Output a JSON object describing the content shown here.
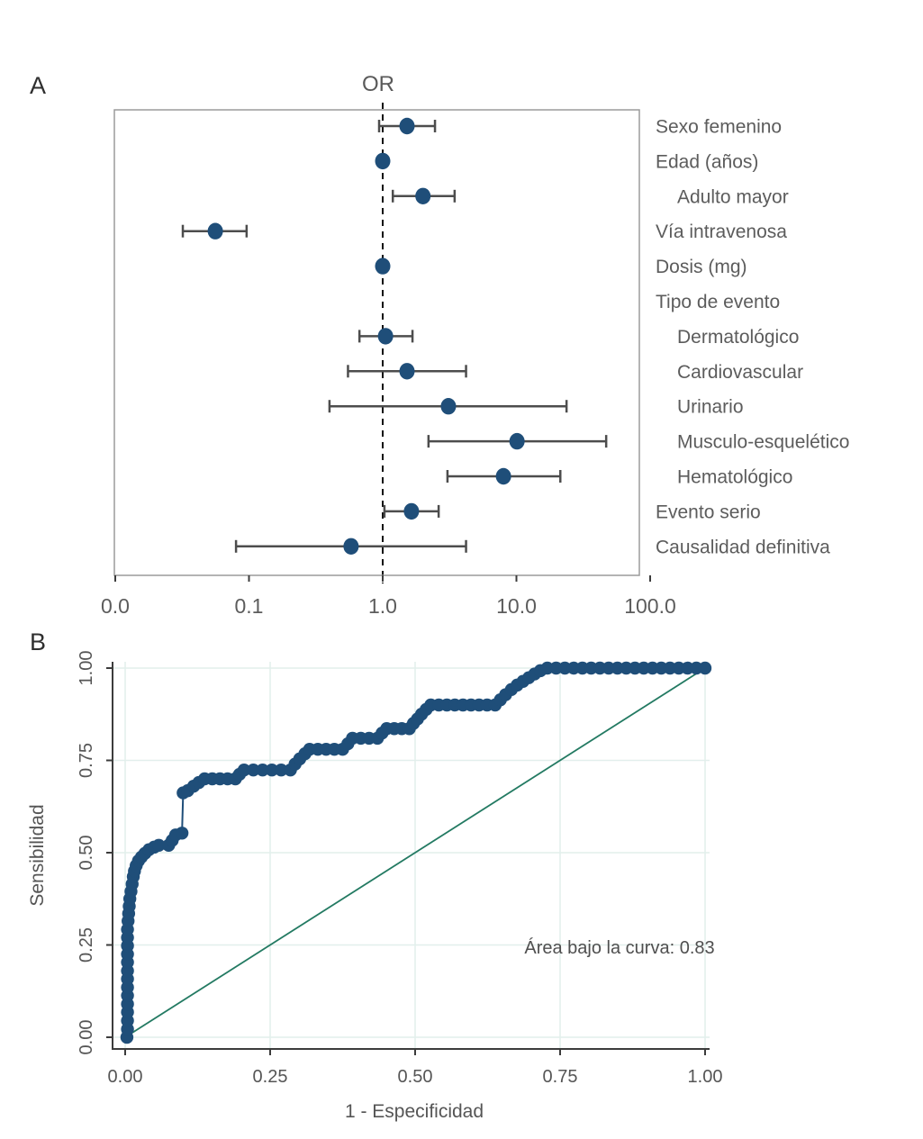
{
  "figure": {
    "panel_a": {
      "panel_label": "A",
      "title": "OR",
      "x_ticks": [
        "0.0",
        "0.1",
        "1.0",
        "10.0",
        "100.0"
      ],
      "x_tick_values": [
        0.01,
        0.1,
        1,
        10,
        100
      ],
      "reference_line": 1.0
    },
    "panel_b": {
      "panel_label": "B",
      "x_label": "1 - Especificidad",
      "y_label": "Sensibilidad",
      "x_ticks": [
        "0.00",
        "0.25",
        "0.50",
        "0.75",
        "1.00"
      ],
      "y_ticks": [
        "0.00",
        "0.25",
        "0.50",
        "0.75",
        "1.00"
      ],
      "annotation": "Área bajo la curva: 0.83",
      "auc": 0.83
    }
  },
  "colors": {
    "marker_navy": "#1f4e79",
    "diagonal_teal": "#237a62",
    "errorbar_gray": "#4d4d4d",
    "grid_light": "#e2efec",
    "text_gray": "#5c5c5c"
  },
  "chart_data": [
    {
      "type": "scatter",
      "subtype": "forest-plot",
      "title": "OR",
      "x_scale": "log",
      "x_ticks": [
        "0.0",
        "0.1",
        "1.0",
        "10.0",
        "100.0"
      ],
      "x_tick_values": [
        0.01,
        0.1,
        1,
        10,
        100
      ],
      "reference_line": 1.0,
      "rows": [
        {
          "label": "Sexo femenino",
          "indent": false,
          "or": 1.52,
          "ci_low": 0.94,
          "ci_high": 2.46
        },
        {
          "label": "Edad (años)",
          "indent": false,
          "or": 1.0,
          "ci_low": null,
          "ci_high": null
        },
        {
          "label": "Adulto mayor",
          "indent": true,
          "or": 2.0,
          "ci_low": 1.19,
          "ci_high": 3.45
        },
        {
          "label": "Vía intravenosa",
          "indent": false,
          "or": 0.056,
          "ci_low": 0.032,
          "ci_high": 0.096
        },
        {
          "label": "Dosis (mg)",
          "indent": false,
          "or": 1.0,
          "ci_low": null,
          "ci_high": null
        },
        {
          "label": "Tipo de evento",
          "indent": false,
          "or": null,
          "ci_low": null,
          "ci_high": null
        },
        {
          "label": "Dermatológico",
          "indent": true,
          "or": 1.05,
          "ci_low": 0.67,
          "ci_high": 1.67
        },
        {
          "label": "Cardiovascular",
          "indent": true,
          "or": 1.52,
          "ci_low": 0.55,
          "ci_high": 4.2
        },
        {
          "label": "Urinario",
          "indent": true,
          "or": 3.1,
          "ci_low": 0.4,
          "ci_high": 23.7
        },
        {
          "label": "Musculo-esquelético",
          "indent": true,
          "or": 10.1,
          "ci_low": 2.2,
          "ci_high": 46.9
        },
        {
          "label": "Hematológico",
          "indent": true,
          "or": 8.0,
          "ci_low": 3.05,
          "ci_high": 21.3
        },
        {
          "label": "Evento serio",
          "indent": false,
          "or": 1.64,
          "ci_low": 1.03,
          "ci_high": 2.62
        },
        {
          "label": "Causalidad definitiva",
          "indent": false,
          "or": 0.58,
          "ci_low": 0.08,
          "ci_high": 4.2
        }
      ]
    },
    {
      "type": "line",
      "subtype": "roc-curve",
      "xlabel": "1 - Especificidad",
      "ylabel": "Sensibilidad",
      "x_ticks": [
        "0.00",
        "0.25",
        "0.50",
        "0.75",
        "1.00"
      ],
      "y_ticks": [
        "0.00",
        "0.25",
        "0.50",
        "0.75",
        "1.00"
      ],
      "xlim": [
        0,
        1
      ],
      "ylim": [
        0,
        1
      ],
      "grid": true,
      "annotation": "Área bajo la curva: 0.83",
      "auc": 0.83,
      "diagonal_reference": true,
      "points": [
        [
          0.003,
          0.0
        ],
        [
          0.004,
          0.022
        ],
        [
          0.004,
          0.045
        ],
        [
          0.004,
          0.068
        ],
        [
          0.004,
          0.09
        ],
        [
          0.004,
          0.113
        ],
        [
          0.004,
          0.135
        ],
        [
          0.004,
          0.158
        ],
        [
          0.004,
          0.18
        ],
        [
          0.004,
          0.203
        ],
        [
          0.004,
          0.225
        ],
        [
          0.004,
          0.248
        ],
        [
          0.004,
          0.27
        ],
        [
          0.004,
          0.292
        ],
        [
          0.005,
          0.315
        ],
        [
          0.006,
          0.335
        ],
        [
          0.007,
          0.355
        ],
        [
          0.008,
          0.375
        ],
        [
          0.01,
          0.395
        ],
        [
          0.012,
          0.415
        ],
        [
          0.014,
          0.435
        ],
        [
          0.016,
          0.45
        ],
        [
          0.019,
          0.465
        ],
        [
          0.023,
          0.478
        ],
        [
          0.028,
          0.488
        ],
        [
          0.034,
          0.498
        ],
        [
          0.041,
          0.508
        ],
        [
          0.05,
          0.515
        ],
        [
          0.058,
          0.52
        ],
        [
          0.075,
          0.52
        ],
        [
          0.081,
          0.533
        ],
        [
          0.087,
          0.548
        ],
        [
          0.098,
          0.553
        ],
        [
          0.1,
          0.662,
          1
        ],
        [
          0.108,
          0.668
        ],
        [
          0.118,
          0.68
        ],
        [
          0.127,
          0.69
        ],
        [
          0.137,
          0.7
        ],
        [
          0.19,
          0.7
        ],
        [
          0.197,
          0.712
        ],
        [
          0.205,
          0.724
        ],
        [
          0.285,
          0.724
        ],
        [
          0.293,
          0.74
        ],
        [
          0.301,
          0.754
        ],
        [
          0.31,
          0.768
        ],
        [
          0.318,
          0.78
        ],
        [
          0.375,
          0.78
        ],
        [
          0.384,
          0.795
        ],
        [
          0.392,
          0.81
        ],
        [
          0.435,
          0.81
        ],
        [
          0.443,
          0.824
        ],
        [
          0.451,
          0.836
        ],
        [
          0.49,
          0.836
        ],
        [
          0.497,
          0.85
        ],
        [
          0.504,
          0.862
        ],
        [
          0.511,
          0.875
        ],
        [
          0.519,
          0.888
        ],
        [
          0.527,
          0.9
        ],
        [
          0.638,
          0.9
        ],
        [
          0.647,
          0.914
        ],
        [
          0.656,
          0.928
        ],
        [
          0.666,
          0.942
        ],
        [
          0.676,
          0.954
        ],
        [
          0.686,
          0.964
        ],
        [
          0.696,
          0.974
        ],
        [
          0.706,
          0.984
        ],
        [
          0.716,
          0.993
        ],
        [
          0.728,
          1.0
        ],
        [
          1.0,
          1.0
        ]
      ]
    }
  ]
}
